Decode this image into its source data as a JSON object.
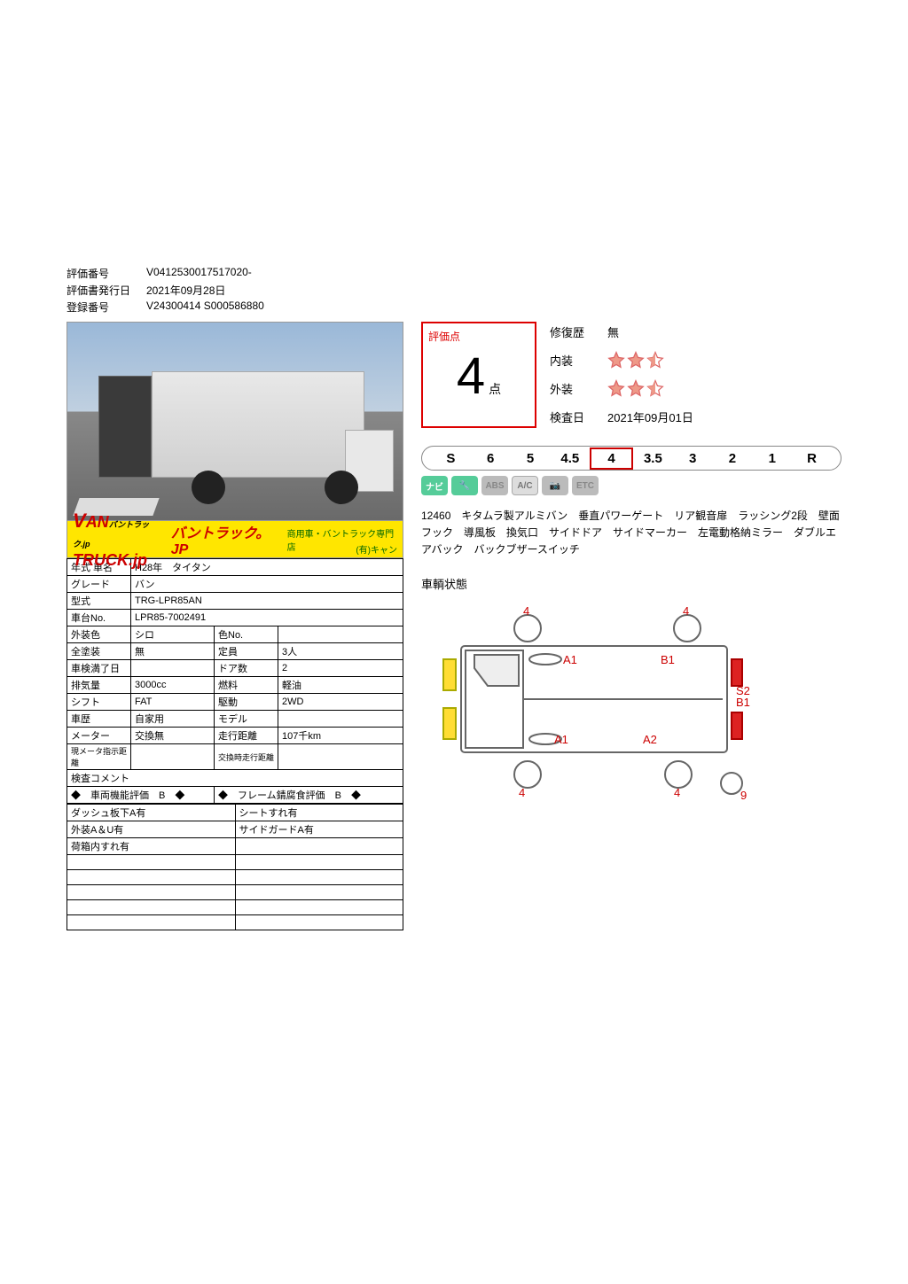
{
  "header": {
    "eval_no_label": "評価番号",
    "eval_no": "V0412530017517020-",
    "issue_date_label": "評価書発行日",
    "issue_date": "2021年09月28日",
    "reg_no_label": "登録番号",
    "reg_no": "V24300414 S000586880"
  },
  "logo": {
    "brand": "VANTRUCK.jp",
    "small": "バントラック.jp",
    "jp": "バントラック。JP",
    "sub": "商用車・バントラック専門店",
    "tag": "(有)キャン"
  },
  "specs": {
    "year_label": "年式 車名",
    "year": "H28年　タイタン",
    "grade_label": "グレード",
    "grade": "バン",
    "model_label": "型式",
    "model": "TRG-LPR85AN",
    "chassis_label": "車台No.",
    "chassis": "LPR85-7002491",
    "ext_color_label": "外装色",
    "ext_color": "シロ",
    "color_no_label": "色No.",
    "color_no": "",
    "paint_label": "全塗装",
    "paint": "無",
    "capacity_label": "定員",
    "capacity": "3人",
    "inspection_label": "車検満了日",
    "inspection": "",
    "doors_label": "ドア数",
    "doors": "2",
    "disp_label": "排気量",
    "displacement": "3000cc",
    "fuel_label": "燃料",
    "fuel": "軽油",
    "shift_label": "シフト",
    "shift": "FAT",
    "drive_label": "駆動",
    "drive": "2WD",
    "history_label": "車歴",
    "history": "自家用",
    "model2_label": "モデル",
    "model2": "",
    "meter_label": "メーター",
    "meter": "交換無",
    "mileage_label": "走行距離",
    "mileage": "107千km",
    "cur_meter_label": "現メータ指示距離",
    "cur_meter": "",
    "exch_mileage_label": "交換時走行距離",
    "exch_mileage": ""
  },
  "inspection": {
    "title": "検査コメント",
    "func_eval": "◆　車両機能評価　B　◆",
    "frame_eval": "◆　フレーム錆腐食評価　B　◆",
    "rows_left": [
      "ダッシュ板下A有",
      "外装A＆U有",
      "荷箱内すれ有",
      "",
      "",
      "",
      "",
      ""
    ],
    "rows_right": [
      "シートすれ有",
      "サイドガードA有",
      "",
      "",
      "",
      "",
      "",
      ""
    ]
  },
  "score": {
    "label": "評価点",
    "value": "4",
    "unit": "点",
    "repair_label": "修復歴",
    "repair": "無",
    "interior_label": "内装",
    "interior_stars": 2.5,
    "exterior_label": "外装",
    "exterior_stars": 2.5,
    "inspect_date_label": "検査日",
    "inspect_date": "2021年09月01日"
  },
  "scale": {
    "items": [
      "S",
      "6",
      "5",
      "4.5",
      "4",
      "3.5",
      "3",
      "2",
      "1",
      "R"
    ],
    "active_index": 4
  },
  "badges": [
    "ナビ",
    "🔧",
    "ABS",
    "A/C",
    "📷",
    "ETC"
  ],
  "description": "12460　キタムラ製アルミバン　垂直パワーゲート　リア観音扉　ラッシング2段　壁面フック　導風板　換気口　サイドドア　サイドマーカー　左電動格納ミラー　ダブルエアバック　バックブザースイッチ",
  "condition": {
    "label": "車輌状態",
    "marks": {
      "a1": "A1",
      "a1b": "A1",
      "b1": "B1",
      "a2": "A2",
      "s2": "S2",
      "b1r": "B1"
    },
    "nums": [
      "4",
      "4",
      "4",
      "4",
      "9"
    ],
    "colors": {
      "outline": "#666666",
      "mark": "#cc0000",
      "yellow": "#ffdd33",
      "red": "#dd2222"
    }
  }
}
